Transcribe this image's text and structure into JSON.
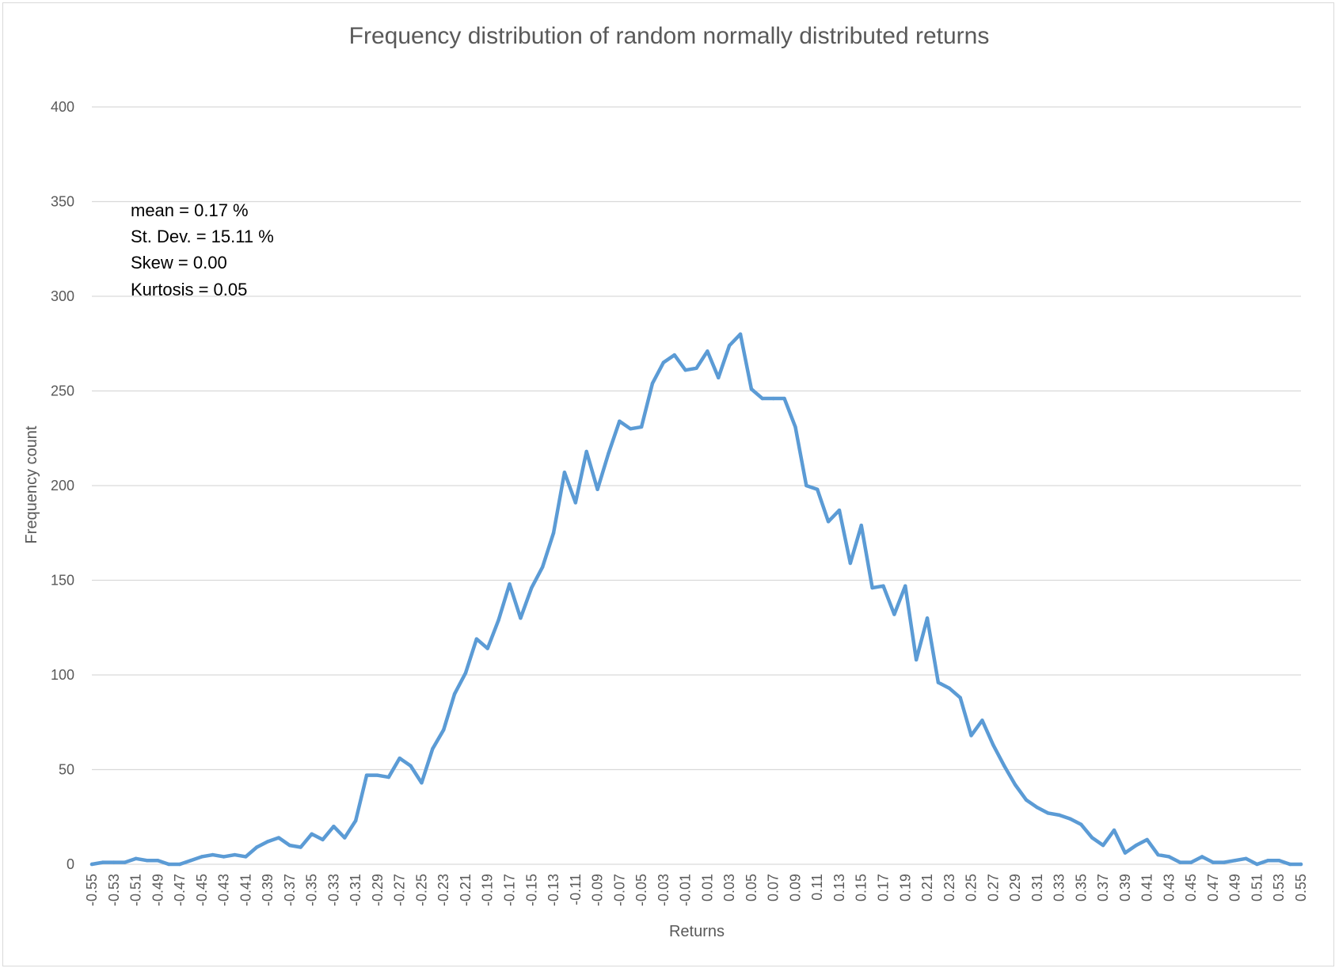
{
  "chart_data": {
    "type": "line",
    "title": "Frequency distribution of random normally distributed returns",
    "xlabel": "Returns",
    "ylabel": "Frequency count",
    "ylim": [
      0,
      400
    ],
    "yticks": [
      0,
      50,
      100,
      150,
      200,
      250,
      300,
      350,
      400
    ],
    "xlim": [
      -0.55,
      0.55
    ],
    "xtick_labels": [
      "-0.55",
      "-0.53",
      "-0.51",
      "-0.49",
      "-0.47",
      "-0.45",
      "-0.43",
      "-0.41",
      "-0.39",
      "-0.37",
      "-0.35",
      "-0.33",
      "-0.31",
      "-0.29",
      "-0.27",
      "-0.25",
      "-0.23",
      "-0.21",
      "-0.19",
      "-0.17",
      "-0.15",
      "-0.13",
      "-0.11",
      "-0.09",
      "-0.07",
      "-0.05",
      "-0.03",
      "-0.01",
      "0.01",
      "0.03",
      "0.05",
      "0.07",
      "0.09",
      "0.11",
      "0.13",
      "0.15",
      "0.17",
      "0.19",
      "0.21",
      "0.23",
      "0.25",
      "0.27",
      "0.29",
      "0.31",
      "0.33",
      "0.35",
      "0.37",
      "0.39",
      "0.41",
      "0.43",
      "0.45",
      "0.47",
      "0.49",
      "0.51",
      "0.53",
      "0.55"
    ],
    "grid": true,
    "legend": "none",
    "line_color": "#5b9bd5",
    "grid_color": "#d9d9d9",
    "annotations": [
      "mean = 0.17 %",
      "St. Dev. = 15.11 %",
      "Skew = 0.00",
      "Kurtosis = 0.05"
    ],
    "series": [
      {
        "x": [
          -0.55,
          -0.54,
          -0.53,
          -0.52,
          -0.51,
          -0.5,
          -0.49,
          -0.48,
          -0.47,
          -0.46,
          -0.45,
          -0.44,
          -0.43,
          -0.42,
          -0.41,
          -0.4,
          -0.39,
          -0.38,
          -0.37,
          -0.36,
          -0.35,
          -0.34,
          -0.33,
          -0.32,
          -0.31,
          -0.3,
          -0.29,
          -0.28,
          -0.27,
          -0.26,
          -0.25,
          -0.24,
          -0.23,
          -0.22,
          -0.21,
          -0.2,
          -0.19,
          -0.18,
          -0.17,
          -0.16,
          -0.15,
          -0.14,
          -0.13,
          -0.12,
          -0.11,
          -0.1,
          -0.09,
          -0.08,
          -0.07,
          -0.06,
          -0.05,
          -0.04,
          -0.03,
          -0.02,
          -0.01,
          0.0,
          0.01,
          0.02,
          0.03,
          0.04,
          0.05,
          0.06,
          0.07,
          0.08,
          0.09,
          0.1,
          0.11,
          0.12,
          0.13,
          0.14,
          0.15,
          0.16,
          0.17,
          0.18,
          0.19,
          0.2,
          0.21,
          0.22,
          0.23,
          0.24,
          0.25,
          0.26,
          0.27,
          0.28,
          0.29,
          0.3,
          0.31,
          0.32,
          0.33,
          0.34,
          0.35,
          0.36,
          0.37,
          0.38,
          0.39,
          0.4,
          0.41,
          0.42,
          0.43,
          0.44,
          0.45,
          0.46,
          0.47,
          0.48,
          0.49,
          0.5,
          0.51,
          0.52,
          0.53,
          0.54,
          0.55
        ],
        "values": [
          0,
          1,
          1,
          1,
          3,
          2,
          2,
          0,
          0,
          2,
          4,
          5,
          4,
          5,
          4,
          9,
          12,
          14,
          10,
          9,
          16,
          13,
          20,
          14,
          23,
          47,
          47,
          46,
          56,
          52,
          43,
          61,
          71,
          90,
          101,
          119,
          114,
          129,
          148,
          130,
          146,
          157,
          175,
          207,
          191,
          218,
          198,
          217,
          234,
          230,
          231,
          254,
          265,
          269,
          261,
          262,
          271,
          257,
          274,
          280,
          251,
          246,
          246,
          246,
          231,
          200,
          198,
          181,
          187,
          159,
          179,
          146,
          147,
          132,
          147,
          108,
          130,
          96,
          93,
          88,
          68,
          76,
          63,
          52,
          42,
          34,
          30,
          27,
          26,
          24,
          21,
          14,
          10,
          18,
          6,
          10,
          13,
          5,
          4,
          1,
          1,
          4,
          1,
          1,
          2,
          3,
          0,
          2,
          2,
          0,
          0
        ]
      }
    ]
  }
}
